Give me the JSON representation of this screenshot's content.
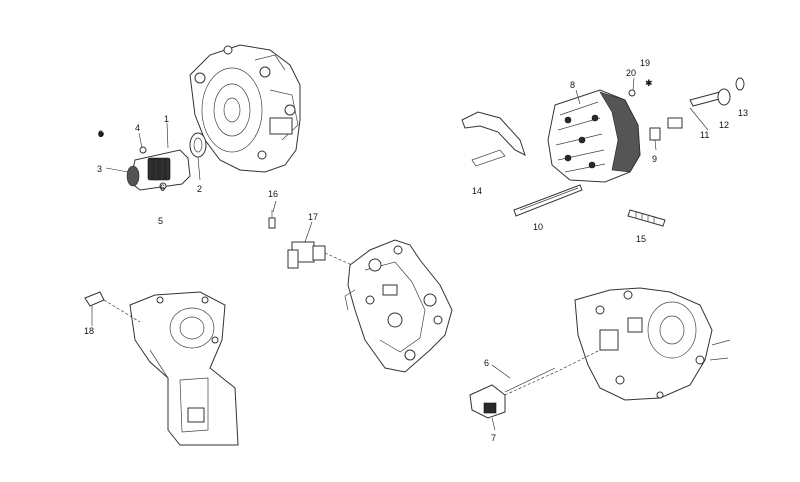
{
  "callouts": {
    "top_left": {
      "c1": "1",
      "c2": "2",
      "c3": "3",
      "c4": "4",
      "c5": "5",
      "c6a": "6",
      "c6b": "6"
    },
    "center": {
      "c16": "16",
      "c17": "17"
    },
    "top_right": {
      "c8": "8",
      "c9": "9",
      "c10": "10",
      "c11": "11",
      "c12": "12",
      "c13": "13",
      "c14": "14",
      "c15": "15",
      "c19": "19",
      "c20": "20"
    },
    "bottom_left": {
      "c18": "18"
    },
    "bottom_right": {
      "c6": "6",
      "c7": "7"
    }
  },
  "colors": {
    "line": "#333333",
    "fill": "#ffffff",
    "dark": "#2a2a2a"
  }
}
